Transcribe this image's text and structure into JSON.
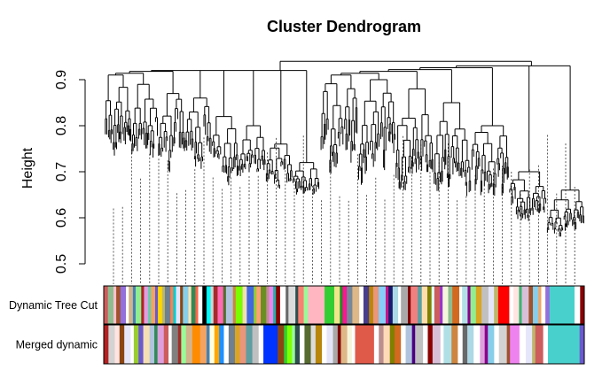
{
  "chart_data": {
    "type": "dendrogram",
    "title": "Cluster Dendrogram",
    "xlabel": "",
    "ylabel": "Height",
    "ylim": [
      0.5,
      0.95
    ],
    "yticks": [
      "0.5",
      "0.6",
      "0.7",
      "0.8",
      "0.9"
    ],
    "grid": false,
    "root_height": 0.94,
    "top_level_clusters": [
      {
        "merge_height": 0.92,
        "sub_merges": [
          0.91,
          0.89,
          0.87,
          0.86,
          0.82,
          0.8,
          0.76,
          0.72
        ],
        "min_leaf_height": 0.58
      },
      {
        "merge_height": 0.93,
        "sub_merges": [
          0.91,
          0.9,
          0.88,
          0.85,
          0.8,
          0.7,
          0.66
        ],
        "min_leaf_height": 0.5
      }
    ],
    "color_rows": [
      {
        "label": "Dynamic Tree Cut",
        "segments": [
          [
            "#cd5c5c",
            1.5
          ],
          [
            "#8fbc8f",
            2
          ],
          [
            "#ffc0cb",
            1
          ],
          [
            "#a0522d",
            1.5
          ],
          [
            "#9370db",
            2
          ],
          [
            "#ffffff",
            1
          ],
          [
            "#d2b48c",
            1.5
          ],
          [
            "#4682b4",
            1
          ],
          [
            "#90ee90",
            2
          ],
          [
            "#b22222",
            1
          ],
          [
            "#dda0dd",
            1.5
          ],
          [
            "#66cdaa",
            1
          ],
          [
            "#f4a460",
            1.5
          ],
          [
            "#6a5acd",
            1
          ],
          [
            "#ffd700",
            1.5
          ],
          [
            "#bdb76b",
            1
          ],
          [
            "#708090",
            2
          ],
          [
            "#ff7f50",
            1
          ],
          [
            "#00ced1",
            1
          ],
          [
            "#e6e6fa",
            1.5
          ],
          [
            "#8b4513",
            1
          ],
          [
            "#87ceeb",
            2
          ],
          [
            "#ffe4b5",
            1
          ],
          [
            "#2e8b57",
            1.5
          ],
          [
            "#ff6347",
            1
          ],
          [
            "#ffffff",
            1.5
          ],
          [
            "#000000",
            1.5
          ],
          [
            "#00ffff",
            1.5
          ],
          [
            "#d3d3d3",
            1
          ],
          [
            "#a52a2a",
            1.5
          ],
          [
            "#ff69b4",
            2
          ],
          [
            "#556b2f",
            1
          ],
          [
            "#b0c4de",
            2.5
          ],
          [
            "#cd853f",
            1
          ],
          [
            "#7cfc00",
            2.5
          ],
          [
            "#f5deb3",
            1.5
          ],
          [
            "#4169e1",
            2.5
          ],
          [
            "#9acd32",
            1
          ],
          [
            "#ffa07a",
            1.5
          ],
          [
            "#6b8e23",
            2
          ],
          [
            "#bc8f8f",
            1
          ],
          [
            "#ee82ee",
            1.5
          ],
          [
            "#20b2aa",
            1
          ],
          [
            "#8b0000",
            1.5
          ],
          [
            "#ffffff",
            2
          ],
          [
            "#696969",
            1
          ],
          [
            "#dcdcdc",
            2.5
          ],
          [
            "#2f4f4f",
            1
          ],
          [
            "#fa8072",
            2
          ],
          [
            "#98fb98",
            1.5
          ],
          [
            "#ffb6c1",
            6
          ],
          [
            "#32cd32",
            3.5
          ],
          [
            "#f0e68c",
            2
          ],
          [
            "#228b22",
            1
          ],
          [
            "#ff1493",
            1.5
          ],
          [
            "#778899",
            2
          ],
          [
            "#deb887",
            2.5
          ],
          [
            "#ffffff",
            1.5
          ],
          [
            "#483d8b",
            2
          ],
          [
            "#b8860b",
            1.5
          ],
          [
            "#e9967a",
            2
          ],
          [
            "#87cefa",
            2.5
          ],
          [
            "#c71585",
            1
          ],
          [
            "#191970",
            1.5
          ],
          [
            "#add8e6",
            2
          ],
          [
            "#ffffff",
            1
          ],
          [
            "#a9a9a9",
            2.5
          ],
          [
            "#800000",
            1
          ],
          [
            "#f08080",
            2.5
          ],
          [
            "#5f9ea0",
            1.5
          ],
          [
            "#ffdead",
            2
          ],
          [
            "#808000",
            1.5
          ],
          [
            "#e0ffff",
            1
          ],
          [
            "#cd5c5c",
            2
          ],
          [
            "#9932cc",
            1
          ],
          [
            "#f5f5dc",
            2
          ],
          [
            "#8fbc8f",
            1.5
          ],
          [
            "#d2691e",
            2.5
          ],
          [
            "#ffffff",
            1
          ],
          [
            "#b0e0e6",
            2
          ],
          [
            "#8b008b",
            1
          ],
          [
            "#90ee90",
            2
          ],
          [
            "#daa520",
            2
          ],
          [
            "#c0c0c0",
            2.5
          ],
          [
            "#e6e6fa",
            2
          ],
          [
            "#bdb76b",
            1.5
          ],
          [
            "#ff0000",
            4
          ],
          [
            "#ffffff",
            1.5
          ],
          [
            "#ffe4e1",
            2
          ],
          [
            "#3cb371",
            1
          ],
          [
            "#d8bfd8",
            2.5
          ],
          [
            "#a0522d",
            1.5
          ],
          [
            "#87ceeb",
            2
          ],
          [
            "#f4a460",
            1
          ],
          [
            "#ffffff",
            1.5
          ],
          [
            "#9370db",
            1.5
          ],
          [
            "#48d1cc",
            9
          ],
          [
            "#ffffff",
            2
          ],
          [
            "#8b0000",
            1.5
          ]
        ]
      },
      {
        "label": "Merged dynamic",
        "segments": [
          [
            "#b22222",
            1.5
          ],
          [
            "#d3d3d3",
            2
          ],
          [
            "#ffe4e1",
            1.5
          ],
          [
            "#8b4513",
            1.5
          ],
          [
            "#e6e6fa",
            2
          ],
          [
            "#ffffff",
            1
          ],
          [
            "#9acd32",
            1.5
          ],
          [
            "#6a5acd",
            1.5
          ],
          [
            "#f5deb3",
            2
          ],
          [
            "#b0c4de",
            1.5
          ],
          [
            "#2e8b57",
            1
          ],
          [
            "#dda0dd",
            2
          ],
          [
            "#cd5c5c",
            1.5
          ],
          [
            "#ffffff",
            1
          ],
          [
            "#808080",
            2
          ],
          [
            "#a52a2a",
            1
          ],
          [
            "#98fb98",
            1.5
          ],
          [
            "#d2b48c",
            2
          ],
          [
            "#ff8c00",
            2.5
          ],
          [
            "#f4a460",
            2
          ],
          [
            "#4682b4",
            1
          ],
          [
            "#ffffe0",
            1.5
          ],
          [
            "#ffa500",
            1.5
          ],
          [
            "#1e90ff",
            1.5
          ],
          [
            "#ffffff",
            1.5
          ],
          [
            "#708090",
            2
          ],
          [
            "#daa520",
            1.5
          ],
          [
            "#e9967a",
            2
          ],
          [
            "#5f9ea0",
            2
          ],
          [
            "#c0c0c0",
            2
          ],
          [
            "#ffffff",
            1.5
          ],
          [
            "#0033ff",
            4.5
          ],
          [
            "#8b4513",
            2
          ],
          [
            "#32cd32",
            1
          ],
          [
            "#7fff00",
            1.5
          ],
          [
            "#98fb98",
            1
          ],
          [
            "#2f4f4f",
            1.5
          ],
          [
            "#ffffff",
            1.5
          ],
          [
            "#556b2f",
            2
          ],
          [
            "#dcdcdc",
            1.5
          ],
          [
            "#b8860b",
            2
          ],
          [
            "#ffffff",
            1.5
          ],
          [
            "#e6e6fa",
            2
          ],
          [
            "#a9a9a9",
            1.5
          ],
          [
            "#800000",
            1
          ],
          [
            "#deb887",
            2
          ],
          [
            "#f5f5dc",
            1.5
          ],
          [
            "#ffffff",
            1
          ],
          [
            "#e05a4a",
            6
          ],
          [
            "#ffffff",
            1.5
          ],
          [
            "#bc8f8f",
            1.5
          ],
          [
            "#ffdab9",
            2
          ],
          [
            "#808000",
            1.5
          ],
          [
            "#d2691e",
            2
          ],
          [
            "#ffffff",
            1.5
          ],
          [
            "#b0c4de",
            2
          ],
          [
            "#4b0082",
            1
          ],
          [
            "#c0c0c0",
            2.5
          ],
          [
            "#ffffff",
            1.5
          ],
          [
            "#8b0000",
            1.5
          ],
          [
            "#d8bfd8",
            2.5
          ],
          [
            "#ffffff",
            1
          ],
          [
            "#b0e0e6",
            2.5
          ],
          [
            "#cd853f",
            2
          ],
          [
            "#ffffff",
            1.5
          ],
          [
            "#696969",
            1.5
          ],
          [
            "#add8e6",
            2
          ],
          [
            "#ffffff",
            2
          ],
          [
            "#dda0dd",
            1.5
          ],
          [
            "#8b008b",
            1
          ],
          [
            "#87ceeb",
            2
          ],
          [
            "#ffffff",
            1.5
          ],
          [
            "#d3d3d3",
            2.5
          ],
          [
            "#a0522d",
            1
          ],
          [
            "#ee82ee",
            3
          ],
          [
            "#ffffff",
            2
          ],
          [
            "#e6e6fa",
            2
          ],
          [
            "#bdb76b",
            1
          ],
          [
            "#cd5c5c",
            2.5
          ],
          [
            "#ffffff",
            1.5
          ],
          [
            "#48d1cc",
            10
          ],
          [
            "#6a5acd",
            1.5
          ]
        ]
      }
    ]
  }
}
